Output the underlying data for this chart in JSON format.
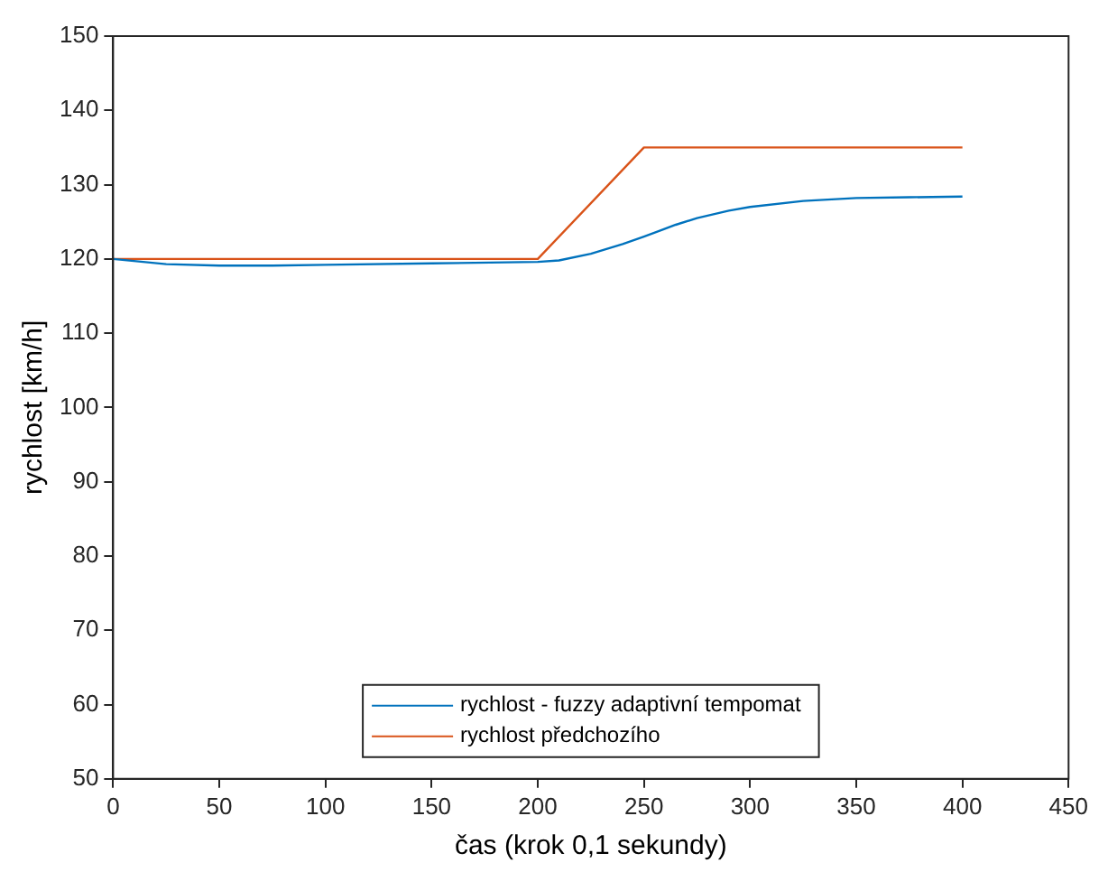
{
  "chart_data": {
    "type": "line",
    "xlabel": "čas (krok 0,1 sekundy)",
    "ylabel": "rychlost [km/h]",
    "xlim": [
      0,
      450
    ],
    "xticks": [
      0,
      50,
      100,
      150,
      200,
      250,
      300,
      350,
      400,
      450
    ],
    "ylim": [
      50,
      150
    ],
    "yticks": [
      50,
      60,
      70,
      80,
      90,
      100,
      110,
      120,
      130,
      140,
      150
    ],
    "grid": false,
    "legend": "bottom",
    "marker": "none",
    "line_style": "solid",
    "series": [
      {
        "name": "rychlost - fuzzy adaptivní tempomat",
        "color": "#0072bd",
        "x": [
          0,
          25,
          50,
          75,
          100,
          150,
          200,
          210,
          225,
          240,
          250,
          265,
          275,
          290,
          300,
          325,
          350,
          375,
          400
        ],
        "values": [
          120,
          119.3,
          119.1,
          119.1,
          119.2,
          119.4,
          119.6,
          119.8,
          120.7,
          122,
          123,
          124.6,
          125.5,
          126.5,
          127,
          127.8,
          128.2,
          128.3,
          128.4
        ]
      },
      {
        "name": "rychlost předchozího",
        "color": "#d95319",
        "x": [
          0,
          200,
          250,
          400
        ],
        "values": [
          120,
          120,
          135,
          135
        ]
      }
    ]
  }
}
